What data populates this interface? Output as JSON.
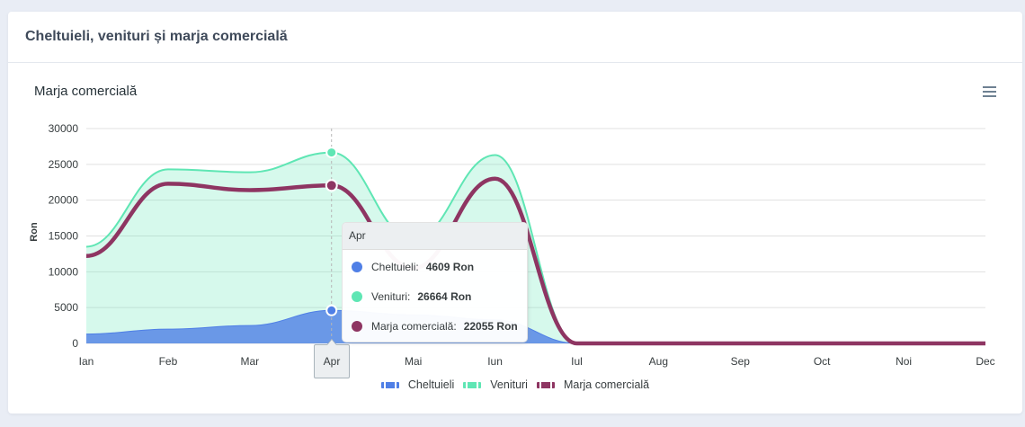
{
  "colors": {
    "page_background": "#e9edf5",
    "card_background": "#ffffff"
  },
  "card": {
    "title": "Cheltuieli, venituri și marja comercială"
  },
  "toolbar": {
    "menu_icon": "hamburger-menu-icon"
  },
  "chart_data": {
    "type": "area",
    "title": "Marja comercială",
    "ylabel": "Ron",
    "categories": [
      "Ian",
      "Feb",
      "Mar",
      "Apr",
      "Mai",
      "Iun",
      "Iul",
      "Aug",
      "Sep",
      "Oct",
      "Noi",
      "Dec"
    ],
    "ylim": [
      0,
      30000
    ],
    "yticks": [
      0,
      5000,
      10000,
      15000,
      20000,
      25000,
      30000
    ],
    "grid": true,
    "legend_position": "bottom",
    "series": [
      {
        "name": "Cheltuieli",
        "type": "area",
        "color": "#4f7fe6",
        "values": [
          1300,
          2000,
          2500,
          4609,
          4000,
          3300,
          0,
          0,
          0,
          0,
          0,
          0
        ]
      },
      {
        "name": "Venituri",
        "type": "area",
        "color": "#5fe6b4",
        "values": [
          13500,
          24300,
          23900,
          26664,
          14500,
          26300,
          0,
          0,
          0,
          0,
          0,
          0
        ]
      },
      {
        "name": "Marja comercială",
        "type": "line",
        "color": "#8e3562",
        "values": [
          12200,
          22300,
          21400,
          22055,
          10500,
          23000,
          0,
          0,
          0,
          0,
          0,
          0
        ]
      }
    ],
    "tooltip": {
      "category": "Apr",
      "items": [
        {
          "label": "Cheltuieli:",
          "value": "4609 Ron"
        },
        {
          "label": "Venituri:",
          "value": "26664 Ron"
        },
        {
          "label": "Marja comercială:",
          "value": "22055 Ron"
        }
      ]
    }
  }
}
